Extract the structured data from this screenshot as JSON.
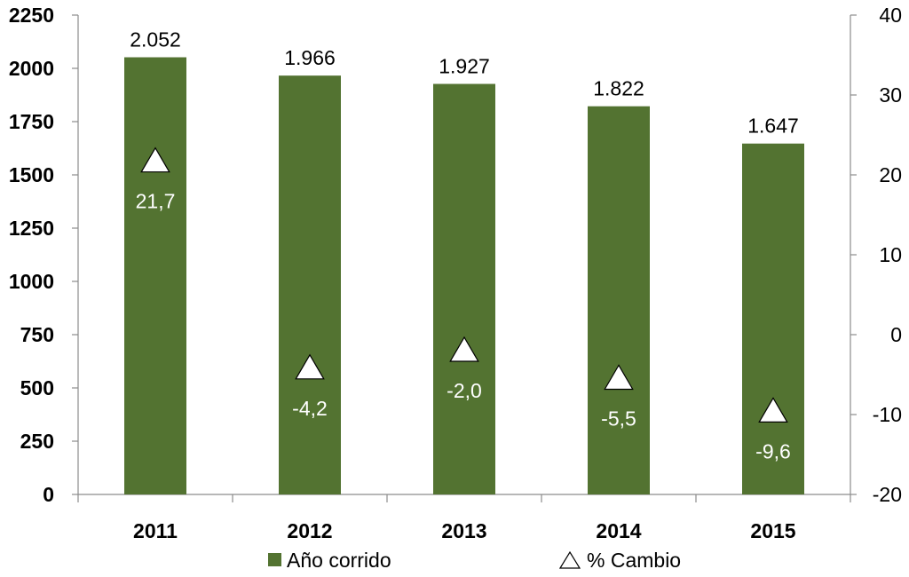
{
  "chart_data": {
    "type": "bar",
    "categories": [
      "2011",
      "2012",
      "2013",
      "2014",
      "2015"
    ],
    "series": [
      {
        "name": "Año corrido",
        "type": "bar",
        "axis": "left",
        "values": [
          2052,
          1966,
          1927,
          1822,
          1647
        ],
        "labels": [
          "2.052",
          "1.966",
          "1.927",
          "1.822",
          "1.647"
        ]
      },
      {
        "name": "% Cambio",
        "type": "scatter",
        "axis": "right",
        "marker": "triangle",
        "values": [
          21.7,
          -4.2,
          -2.0,
          -5.5,
          -9.6
        ],
        "labels": [
          "21,7",
          "-4,2",
          "-2,0",
          "-5,5",
          "-9,6"
        ]
      }
    ],
    "y_left": {
      "min": 0,
      "max": 2250,
      "ticks": [
        "0",
        "250",
        "500",
        "750",
        "1000",
        "1250",
        "1500",
        "1750",
        "2000",
        "2250"
      ]
    },
    "y_right": {
      "min": -20,
      "max": 40,
      "ticks": [
        "-20",
        "-10",
        "0",
        "10",
        "20",
        "30",
        "40"
      ]
    },
    "legend": {
      "position": "bottom",
      "bar_label": "Año corrido",
      "marker_label": "% Cambio"
    },
    "grid": false,
    "colors": {
      "bar": "#537331",
      "marker_fill": "#ffffff",
      "marker_stroke": "#000000"
    }
  }
}
